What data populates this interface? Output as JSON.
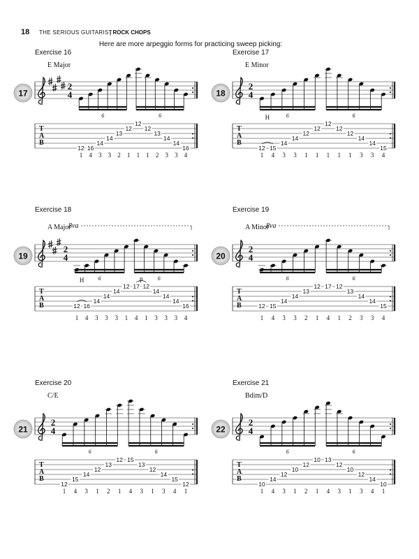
{
  "header": {
    "page_number": "18",
    "book": "THE SERIOUS GUITARIST",
    "section": "| ROCK CHOPS"
  },
  "intro": "Here are more arpeggio forms for practicing sweep picking:",
  "exercises": [
    {
      "title": "Exercise 16",
      "chord": "E Major",
      "track": "17",
      "time": [
        "2",
        "4"
      ],
      "key_sharps": 4,
      "tab_clef": [
        "T",
        "A",
        "B"
      ],
      "tuplets": [
        "6",
        "6"
      ],
      "notes": [
        {
          "string": 6,
          "fret": 12
        },
        {
          "string": 6,
          "fret": 16
        },
        {
          "string": 5,
          "fret": 14
        },
        {
          "string": 4,
          "fret": 14
        },
        {
          "string": 3,
          "fret": 13
        },
        {
          "string": 2,
          "fret": 12
        },
        {
          "string": 1,
          "fret": 12
        },
        {
          "string": 2,
          "fret": 12
        },
        {
          "string": 3,
          "fret": 13
        },
        {
          "string": 4,
          "fret": 14
        },
        {
          "string": 5,
          "fret": 14
        },
        {
          "string": 6,
          "fret": 16
        }
      ],
      "fingering": [
        1,
        4,
        3,
        3,
        2,
        1,
        1,
        1,
        2,
        3,
        3,
        4
      ],
      "techniques": []
    },
    {
      "title": "Exercise 17",
      "chord": "E Minor",
      "track": "18",
      "time": [
        "2",
        "4"
      ],
      "key_sharps": 0,
      "tab_clef": [
        "T",
        "A",
        "B"
      ],
      "tuplets": [
        "6",
        "6"
      ],
      "notes": [
        {
          "string": 6,
          "fret": 12
        },
        {
          "string": 6,
          "fret": 15
        },
        {
          "string": 5,
          "fret": 14
        },
        {
          "string": 4,
          "fret": 14
        },
        {
          "string": 3,
          "fret": 12
        },
        {
          "string": 2,
          "fret": 12
        },
        {
          "string": 1,
          "fret": 12
        },
        {
          "string": 2,
          "fret": 12
        },
        {
          "string": 3,
          "fret": 12
        },
        {
          "string": 4,
          "fret": 14
        },
        {
          "string": 5,
          "fret": 14
        },
        {
          "string": 6,
          "fret": 15
        }
      ],
      "fingering": [
        1,
        4,
        3,
        3,
        1,
        1,
        1,
        1,
        1,
        3,
        3,
        4
      ],
      "techniques": [
        {
          "label": "H",
          "from": 0,
          "to": 1
        }
      ]
    },
    {
      "title": "Exercise 18",
      "chord": "A Major",
      "ottava": "8va",
      "track": "19",
      "time": [
        "2",
        "4"
      ],
      "key_sharps": 3,
      "tab_clef": [
        "T",
        "A",
        "B"
      ],
      "tuplets": [
        "6",
        "6"
      ],
      "notes": [
        {
          "string": 5,
          "fret": 12
        },
        {
          "string": 5,
          "fret": 16
        },
        {
          "string": 4,
          "fret": 14
        },
        {
          "string": 3,
          "fret": 14
        },
        {
          "string": 2,
          "fret": 14
        },
        {
          "string": 1,
          "fret": 12
        },
        {
          "string": 1,
          "fret": 17
        },
        {
          "string": 1,
          "fret": 12
        },
        {
          "string": 2,
          "fret": 14
        },
        {
          "string": 3,
          "fret": 14
        },
        {
          "string": 4,
          "fret": 14
        },
        {
          "string": 5,
          "fret": 16
        }
      ],
      "fingering": [
        1,
        4,
        3,
        3,
        3,
        1,
        4,
        1,
        3,
        3,
        3,
        4
      ],
      "techniques": [
        {
          "label": "H",
          "from": 0,
          "to": 1
        },
        {
          "label": "P",
          "from": 6,
          "to": 7
        }
      ]
    },
    {
      "title": "Exercise 19",
      "chord": "A Minor",
      "ottava": "8va",
      "track": "20",
      "time": [
        "2",
        "4"
      ],
      "key_sharps": 0,
      "tab_clef": [
        "T",
        "A",
        "B"
      ],
      "tuplets": [
        "6",
        "6"
      ],
      "notes": [
        {
          "string": 5,
          "fret": 12
        },
        {
          "string": 5,
          "fret": 15
        },
        {
          "string": 4,
          "fret": 14
        },
        {
          "string": 3,
          "fret": 14
        },
        {
          "string": 2,
          "fret": 13
        },
        {
          "string": 1,
          "fret": 12
        },
        {
          "string": 1,
          "fret": 17
        },
        {
          "string": 1,
          "fret": 12
        },
        {
          "string": 2,
          "fret": 13
        },
        {
          "string": 3,
          "fret": 14
        },
        {
          "string": 4,
          "fret": 14
        },
        {
          "string": 5,
          "fret": 15
        }
      ],
      "fingering": [
        1,
        4,
        3,
        3,
        2,
        1,
        4,
        1,
        2,
        3,
        3,
        4
      ],
      "techniques": []
    },
    {
      "title": "Exercise 20",
      "chord": "C/E",
      "track": "21",
      "time": [
        "2",
        "4"
      ],
      "key_sharps": 0,
      "tab_clef": [
        "T",
        "A",
        "B"
      ],
      "tuplets": [
        "6",
        "6"
      ],
      "notes": [
        {
          "string": 6,
          "fret": 12
        },
        {
          "string": 5,
          "fret": 15
        },
        {
          "string": 4,
          "fret": 14
        },
        {
          "string": 3,
          "fret": 12
        },
        {
          "string": 2,
          "fret": 13
        },
        {
          "string": 1,
          "fret": 12
        },
        {
          "string": 1,
          "fret": 15
        },
        {
          "string": 2,
          "fret": 13
        },
        {
          "string": 3,
          "fret": 12
        },
        {
          "string": 4,
          "fret": 14
        },
        {
          "string": 5,
          "fret": 15
        },
        {
          "string": 6,
          "fret": 12
        }
      ],
      "fingering": [
        1,
        4,
        3,
        1,
        2,
        1,
        4,
        3,
        1,
        3,
        4,
        1
      ],
      "techniques": []
    },
    {
      "title": "Exercise 21",
      "chord": "Bdim/D",
      "track": "22",
      "time": [
        "2",
        "4"
      ],
      "key_sharps": 0,
      "tab_clef": [
        "T",
        "A",
        "B"
      ],
      "tuplets": [
        "6",
        "6"
      ],
      "notes": [
        {
          "string": 6,
          "fret": 10
        },
        {
          "string": 5,
          "fret": 14
        },
        {
          "string": 4,
          "fret": 12
        },
        {
          "string": 3,
          "fret": 10
        },
        {
          "string": 2,
          "fret": 12
        },
        {
          "string": 1,
          "fret": 10
        },
        {
          "string": 1,
          "fret": 13
        },
        {
          "string": 2,
          "fret": 12
        },
        {
          "string": 3,
          "fret": 10
        },
        {
          "string": 4,
          "fret": 12
        },
        {
          "string": 5,
          "fret": 14
        },
        {
          "string": 6,
          "fret": 10
        }
      ],
      "fingering": [
        1,
        4,
        3,
        1,
        2,
        1,
        4,
        3,
        1,
        3,
        4,
        1
      ],
      "techniques": []
    }
  ]
}
